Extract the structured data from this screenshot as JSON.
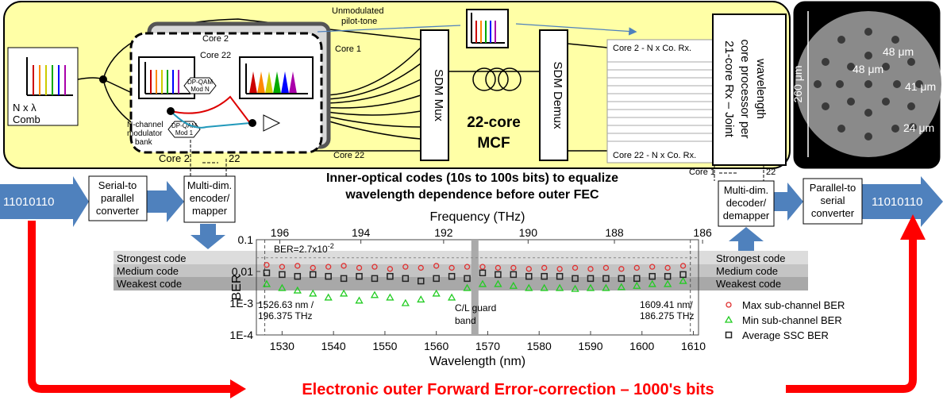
{
  "diagram": {
    "pilot": [
      "Unmodulated",
      "pilot-tone"
    ],
    "core2_top": "Core 2",
    "core22_top": "Core 22",
    "core1": "Core 1",
    "core22_bottom": "Core 22",
    "comb": [
      "N x λ",
      "Comb"
    ],
    "modbank": [
      "N-channel",
      "modulator",
      "bank"
    ],
    "mod_n": [
      "DP-QAM",
      "Mod N"
    ],
    "mod_1": [
      "DP-QAM",
      "Mod 1"
    ],
    "mux": "SDM Mux",
    "mcf": [
      "22-core",
      "MCF"
    ],
    "demux": "SDM Demux",
    "rx_top": "Core 2 - N x Co. Rx.",
    "rx_bottom": "Core  22 - N x Co. Rx.",
    "joint": [
      "21-core Rx – Joint",
      "core processor per",
      "wavelength"
    ],
    "fiber": {
      "diameter": "260 μm",
      "pitch_a": "48 μm",
      "pitch_b": "48 μm",
      "gap_a": "41 μm",
      "gap_b": "24 μm"
    },
    "inner": [
      "Inner-optical codes (10s to 100s bits) to equalize",
      "wavelength dependence before outer FEC"
    ],
    "bits_in": "11010110",
    "serial": [
      "Serial-to",
      "parallel",
      "converter"
    ],
    "encoder": [
      "Multi-dim.",
      "encoder/",
      "mapper"
    ],
    "enc_core": "Core 2",
    "enc_22": "22",
    "dec_core": "Core 1",
    "dec_22": "22",
    "decoder": [
      "Multi-dim.",
      "decoder/",
      "demapper"
    ],
    "parallel": [
      "Parallel-to",
      "serial",
      "converter"
    ],
    "bits_out": "11010110",
    "codes_left": [
      "Strongest code",
      "Medium code",
      "Weakest code"
    ],
    "codes_right": [
      "Strongest code",
      "Medium code",
      "Weakest code"
    ],
    "outer": "Electronic outer Forward Error-correction – 1000's bits"
  },
  "chart_data": {
    "type": "scatter",
    "xlabel": "Wavelength (nm)",
    "ylabel": "BER",
    "x2label": "Frequency (THz)",
    "log_y": true,
    "xlim": [
      1525,
      1611
    ],
    "xticks": [
      1530,
      1540,
      1550,
      1560,
      1570,
      1580,
      1590,
      1600,
      1610
    ],
    "ylim": [
      0.0001,
      0.1
    ],
    "yticks": [
      {
        "value": 0.0001,
        "label": "1E-4"
      },
      {
        "value": 0.001,
        "label": "1E-3"
      },
      0.01,
      0.1
    ],
    "x2ticks": [
      196,
      194,
      192,
      190,
      188,
      186
    ],
    "threshold": {
      "value": 0.027,
      "label": "BER=2.7x10",
      "exponent": "-2"
    },
    "edge_lines": [
      1526.63,
      1609.41
    ],
    "edge_labels": [
      [
        "1526.63 nm /",
        "196.375 THz"
      ],
      [
        "1609.41 nm/",
        "186.275 THz"
      ]
    ],
    "guard_band": [
      1566.8,
      1568.2
    ],
    "guard_label": [
      "C/L guard",
      "band"
    ],
    "x": [
      1527,
      1530,
      1533,
      1536,
      1539,
      1542,
      1545,
      1548,
      1551,
      1554,
      1557,
      1560,
      1563,
      1566,
      1569,
      1572,
      1575,
      1578,
      1581,
      1584,
      1587,
      1590,
      1593,
      1596,
      1599,
      1602,
      1605,
      1608
    ],
    "series": [
      {
        "name": "Max sub-channel BER",
        "color": "#e03030",
        "marker": "circle",
        "values": [
          0.016,
          0.014,
          0.015,
          0.013,
          0.014,
          0.015,
          0.013,
          0.014,
          0.012,
          0.014,
          0.013,
          0.015,
          0.013,
          0.014,
          0.014,
          0.013,
          0.013,
          0.012,
          0.013,
          0.012,
          0.013,
          0.012,
          0.013,
          0.012,
          0.013,
          0.014,
          0.013,
          0.015
        ]
      },
      {
        "name": "Min sub-channel BER",
        "color": "#22cc22",
        "marker": "triangle",
        "values": [
          0.004,
          0.003,
          0.0025,
          0.002,
          0.0015,
          0.002,
          0.0012,
          0.0018,
          0.0015,
          0.001,
          0.0013,
          0.002,
          0.0015,
          0.003,
          0.004,
          0.004,
          0.0035,
          0.003,
          0.003,
          0.003,
          0.0028,
          0.003,
          0.003,
          0.0032,
          0.0035,
          0.004,
          0.004,
          0.005
        ]
      },
      {
        "name": "Average SSC BER",
        "color": "#222222",
        "marker": "square",
        "values": [
          0.009,
          0.008,
          0.007,
          0.008,
          0.007,
          0.006,
          0.007,
          0.006,
          0.007,
          0.006,
          0.005,
          0.006,
          0.007,
          0.006,
          0.009,
          0.008,
          0.008,
          0.007,
          0.007,
          0.007,
          0.006,
          0.006,
          0.006,
          0.006,
          0.006,
          0.007,
          0.007,
          0.008
        ]
      }
    ]
  }
}
